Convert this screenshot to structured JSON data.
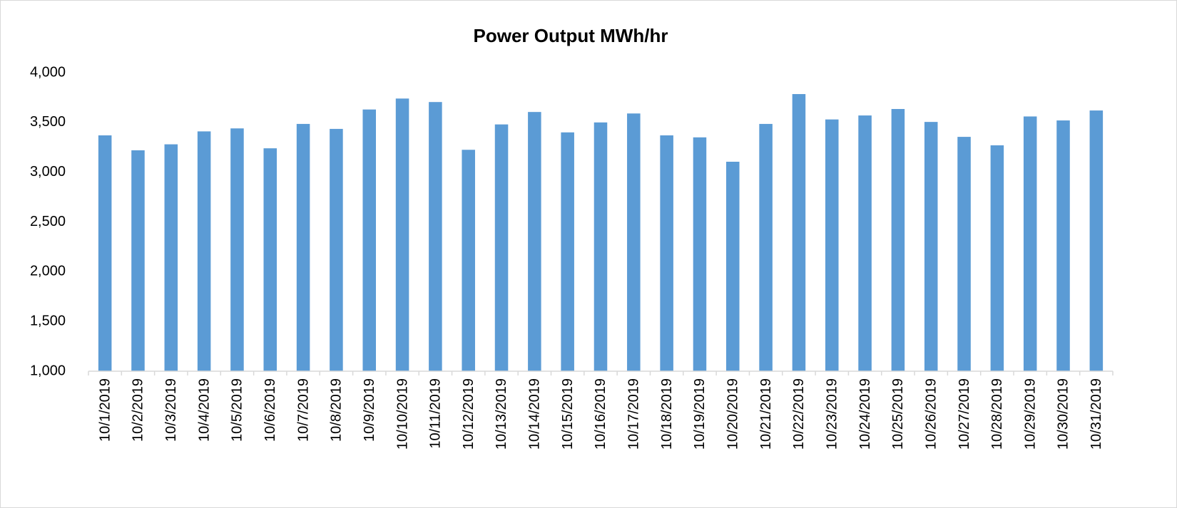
{
  "chart_data": {
    "type": "bar",
    "title": "Power Output MWh/hr",
    "categories": [
      "10/1/2019",
      "10/2/2019",
      "10/3/2019",
      "10/4/2019",
      "10/5/2019",
      "10/6/2019",
      "10/7/2019",
      "10/8/2019",
      "10/9/2019",
      "10/10/2019",
      "10/11/2019",
      "10/12/2019",
      "10/13/2019",
      "10/14/2019",
      "10/15/2019",
      "10/16/2019",
      "10/17/2019",
      "10/18/2019",
      "10/19/2019",
      "10/20/2019",
      "10/21/2019",
      "10/22/2019",
      "10/23/2019",
      "10/24/2019",
      "10/25/2019",
      "10/26/2019",
      "10/27/2019",
      "10/28/2019",
      "10/29/2019",
      "10/30/2019",
      "10/31/2019"
    ],
    "values": [
      3370,
      3220,
      3280,
      3410,
      3440,
      3240,
      3485,
      3435,
      3630,
      3740,
      3705,
      3225,
      3480,
      3605,
      3400,
      3500,
      3590,
      3370,
      3350,
      3105,
      3485,
      3785,
      3530,
      3570,
      3635,
      3505,
      3355,
      3270,
      3560,
      3520,
      3620
    ],
    "color": "#5b9bd5",
    "ylim": [
      1000,
      4000
    ],
    "yticks": [
      {
        "value": 1000,
        "label": "1,000"
      },
      {
        "value": 1500,
        "label": "1,500"
      },
      {
        "value": 2000,
        "label": "2,000"
      },
      {
        "value": 2500,
        "label": "2,500"
      },
      {
        "value": 3000,
        "label": "3,000"
      },
      {
        "value": 3500,
        "label": "3,500"
      },
      {
        "value": 4000,
        "label": "4,000"
      }
    ],
    "grid": false
  }
}
